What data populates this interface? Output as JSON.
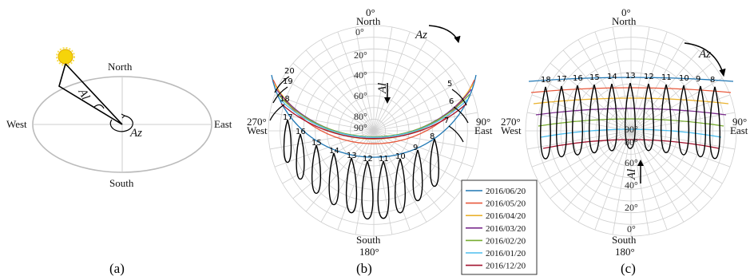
{
  "panel_a": {
    "north": "North",
    "south": "South",
    "east": "East",
    "west": "West",
    "al": "Al",
    "az": "Az",
    "caption": "(a)"
  },
  "panel_b": {
    "north": "North",
    "south": "South",
    "east": "East",
    "west": "West",
    "deg_0": "0°",
    "deg_90": "90°",
    "deg_180": "180°",
    "deg_270": "270°",
    "alt_labels": [
      "0°",
      "20°",
      "40°",
      "60°",
      "80°",
      "90°"
    ],
    "al": "Al",
    "az": "Az",
    "hours": [
      "5",
      "6",
      "7",
      "8",
      "9",
      "10",
      "11",
      "12",
      "13",
      "14",
      "15",
      "16",
      "17",
      "18",
      "19",
      "20"
    ],
    "caption": "(b)"
  },
  "panel_c": {
    "north": "North",
    "south": "South",
    "east": "East",
    "west": "West",
    "deg_0": "0°",
    "deg_90": "90°",
    "deg_180": "180°",
    "deg_270": "270°",
    "alt_labels": [
      "90°",
      "80°",
      "60°",
      "40°",
      "20°",
      "0°"
    ],
    "al": "Al",
    "az": "Az",
    "hours": [
      "18",
      "17",
      "16",
      "15",
      "14",
      "13",
      "12",
      "11",
      "10",
      "9",
      "8"
    ],
    "caption": "(c)"
  },
  "legend": {
    "entries": [
      {
        "label": "2016/06/20",
        "color": "#1f77b4"
      },
      {
        "label": "2016/05/20",
        "color": "#e8583b"
      },
      {
        "label": "2016/04/20",
        "color": "#e9b22e"
      },
      {
        "label": "2016/03/20",
        "color": "#7b2d8e"
      },
      {
        "label": "2016/02/20",
        "color": "#77ac30"
      },
      {
        "label": "2016/01/20",
        "color": "#4dbeee"
      },
      {
        "label": "2016/12/20",
        "color": "#a2142f"
      }
    ]
  }
}
